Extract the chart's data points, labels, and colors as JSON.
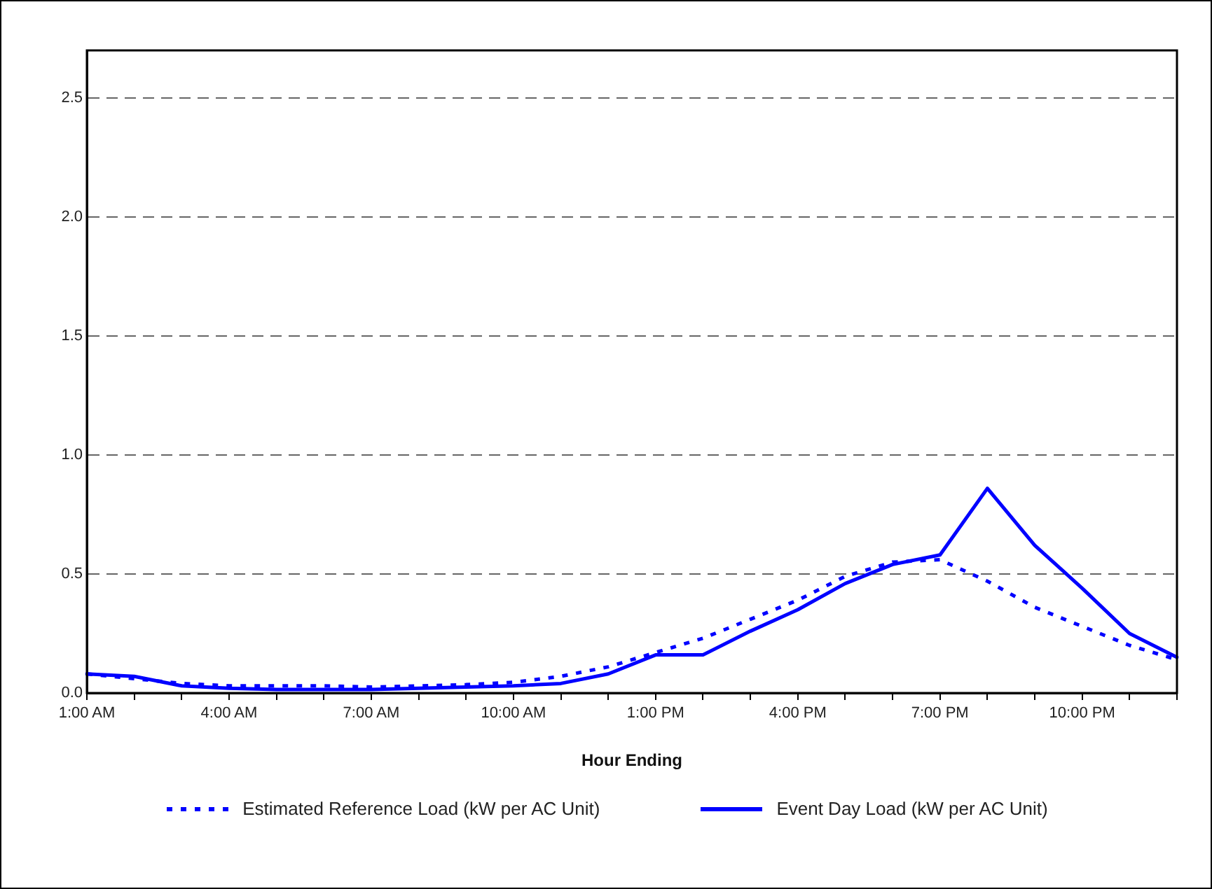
{
  "chart_data": {
    "type": "line",
    "xlabel": "Hour Ending",
    "categories": [
      "1:00 AM",
      null,
      null,
      "4:00 AM",
      null,
      null,
      "7:00 AM",
      null,
      null,
      "10:00 AM",
      null,
      null,
      "1:00 PM",
      null,
      null,
      "4:00 PM",
      null,
      null,
      "7:00 PM",
      null,
      null,
      "10:00 PM",
      null,
      null
    ],
    "series": [
      {
        "name": "Estimated Reference Load (kW per AC Unit)",
        "color": "#0000ff",
        "line_style": "dotted",
        "values": [
          0.08,
          0.06,
          0.04,
          0.03,
          0.03,
          0.03,
          0.025,
          0.03,
          0.035,
          0.045,
          0.07,
          0.11,
          0.17,
          0.23,
          0.31,
          0.39,
          0.49,
          0.55,
          0.56,
          0.47,
          0.36,
          0.28,
          0.2,
          0.14
        ]
      },
      {
        "name": "Event Day Load (kW per AC Unit)",
        "color": "#0000ff",
        "line_style": "solid",
        "values": [
          0.08,
          0.07,
          0.03,
          0.02,
          0.015,
          0.015,
          0.015,
          0.02,
          0.025,
          0.03,
          0.04,
          0.08,
          0.16,
          0.16,
          0.26,
          0.35,
          0.46,
          0.54,
          0.58,
          0.86,
          0.62,
          0.44,
          0.25,
          0.15
        ]
      }
    ],
    "ylim": [
      0,
      2.7
    ],
    "yticks": [
      {
        "value": 0,
        "label": "0.0"
      },
      {
        "value": 0.5,
        "label": "0.5"
      },
      {
        "value": 1,
        "label": "1.0"
      },
      {
        "value": 1.5,
        "label": "1.5"
      },
      {
        "value": 2,
        "label": "2.0"
      },
      {
        "value": 2.5,
        "label": "2.5"
      }
    ],
    "grid": "y",
    "legend": "bottom",
    "marker": "none"
  }
}
